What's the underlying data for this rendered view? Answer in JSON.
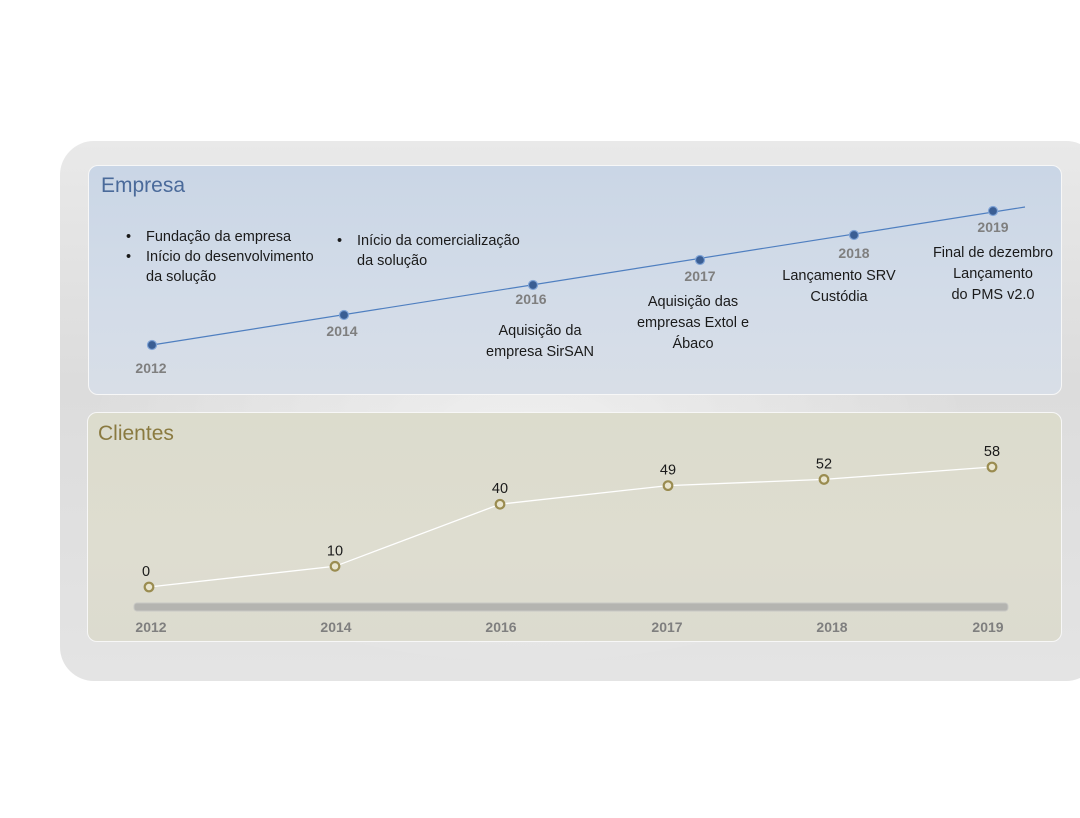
{
  "colors": {
    "company_line": "#4f7fc0",
    "company_marker": "#3a5e94",
    "clients_line": "#ffffff",
    "clients_marker": "#9a8c50",
    "axis_bar": "#b4b4b0"
  },
  "company": {
    "title": "Empresa",
    "bullets_2012": [
      "Fundação da empresa",
      "Início do desenvolvimento"
    ],
    "bullets_2012_cont": "da solução",
    "bullets_2014": [
      "Início da comercialização"
    ],
    "bullets_2014_cont": "da solução",
    "events": [
      {
        "year": "2012",
        "text": []
      },
      {
        "year": "2014",
        "text": []
      },
      {
        "year": "2016",
        "text": [
          "Aquisição da",
          "empresa SirSAN"
        ]
      },
      {
        "year": "2017",
        "text": [
          "Aquisição das",
          "empresas Extol e",
          "Ábaco"
        ]
      },
      {
        "year": "2018",
        "text": [
          "Lançamento SRV",
          "Custódia"
        ]
      },
      {
        "year": "2019",
        "text": [
          "Final de dezembro",
          "Lançamento",
          "do PMS v2.0"
        ]
      }
    ]
  },
  "chart_data": {
    "type": "line",
    "title": "Clientes",
    "x": [
      "2012",
      "2014",
      "2016",
      "2017",
      "2018",
      "2019"
    ],
    "series": [
      {
        "values": [
          0,
          10,
          40,
          49,
          52,
          58
        ]
      }
    ],
    "xlabel": "",
    "ylabel": "",
    "ylim": [
      0,
      58
    ],
    "grid": false,
    "legend": "none"
  }
}
